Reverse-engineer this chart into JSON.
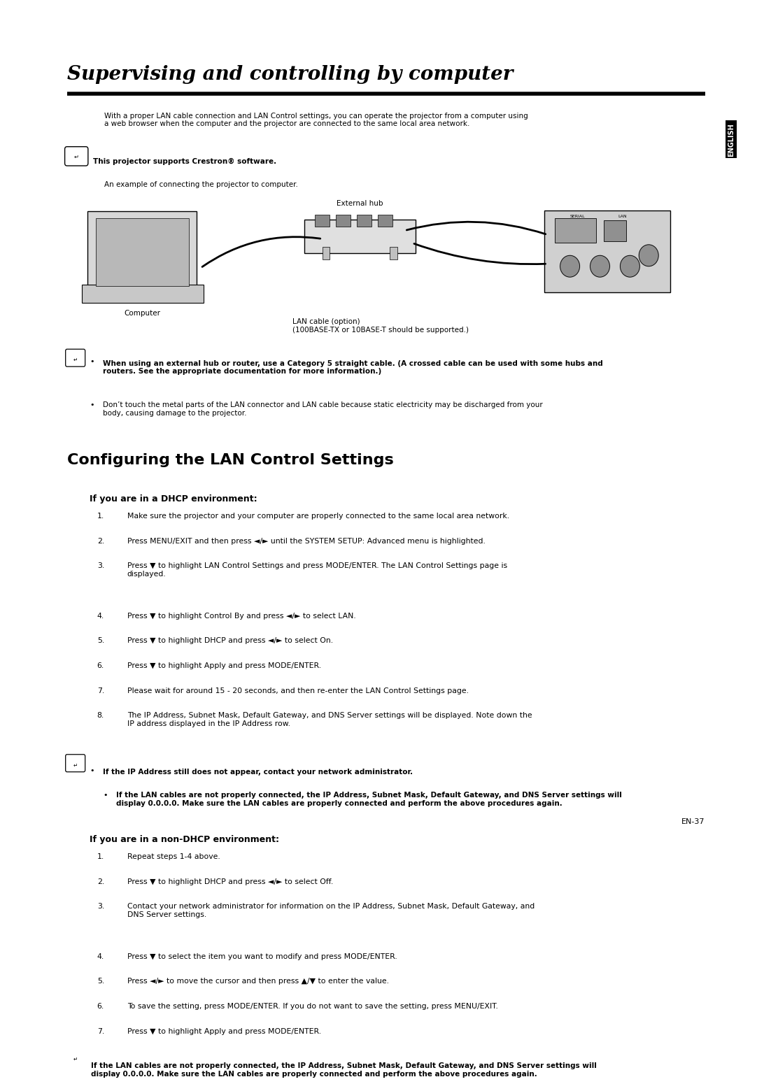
{
  "bg_color": "#ffffff",
  "page_width": 10.8,
  "page_height": 15.28,
  "title": "Supervising and controlling by computer",
  "section2_title": "Configuring the LAN Control Settings",
  "side_label": "ENGLISH",
  "page_number": "EN-37",
  "intro_text": "With a proper LAN cable connection and LAN Control settings, you can operate the projector from a computer using\na web browser when the computer and the projector are connected to the same local area network.",
  "crestron_note": "This projector supports Crestron® software.",
  "example_text": "An example of connecting the projector to computer.",
  "external_hub_label": "External hub",
  "computer_label": "Computer",
  "lan_cable_label": "LAN cable (option)\n(100BASE-TX or 10BASE-T should be supported.)",
  "note1_bold": "When using an external hub or router, use a Category 5 straight cable. (A crossed cable can be used with some hubs and\nrouters. See the appropriate documentation for more information.)",
  "note2": "Don’t touch the metal parts of the LAN connector and LAN cable because static electricity may be discharged from your\nbody, causing damage to the projector.",
  "dhcp_title": "If you are in a DHCP environment:",
  "dhcp_steps": [
    "Make sure the projector and your computer are properly connected to the same local area network.",
    "Press MENU/EXIT and then press ◄/► until the SYSTEM SETUP: Advanced menu is highlighted.",
    "Press ▼ to highlight LAN Control Settings and press MODE/ENTER. The LAN Control Settings page is\ndisplayed.",
    "Press ▼ to highlight Control By and press ◄/► to select LAN.",
    "Press ▼ to highlight DHCP and press ◄/► to select On.",
    "Press ▼ to highlight Apply and press MODE/ENTER.",
    "Please wait for around 15 - 20 seconds, and then re-enter the LAN Control Settings page.",
    "The IP Address, Subnet Mask, Default Gateway, and DNS Server settings will be displayed. Note down the\nIP address displayed in the IP Address row."
  ],
  "dhcp_note1_bold": "If the IP Address still does not appear, contact your network administrator.",
  "dhcp_note2_bold": "If the LAN cables are not properly connected, the IP Address, Subnet Mask, Default Gateway, and DNS Server settings will\ndisplay 0.0.0.0. Make sure the LAN cables are properly connected and perform the above procedures again.",
  "nondhcp_title": "If you are in a non-DHCP environment:",
  "nondhcp_steps": [
    "Repeat steps 1-4 above.",
    "Press ▼ to highlight DHCP and press ◄/► to select Off.",
    "Contact your network administrator for information on the IP Address, Subnet Mask, Default Gateway, and\nDNS Server settings.",
    "Press ▼ to select the item you want to modify and press MODE/ENTER.",
    "Press ◄/► to move the cursor and then press ▲/▼ to enter the value.",
    "To save the setting, press MODE/ENTER. If you do not want to save the setting, press MENU/EXIT.",
    "Press ▼ to highlight Apply and press MODE/ENTER."
  ],
  "final_note_bold": "If the LAN cables are not properly connected, the IP Address, Subnet Mask, Default Gateway, and DNS Server settings will\ndisplay 0.0.0.0. Make sure the LAN cables are properly connected and perform the above procedures again."
}
